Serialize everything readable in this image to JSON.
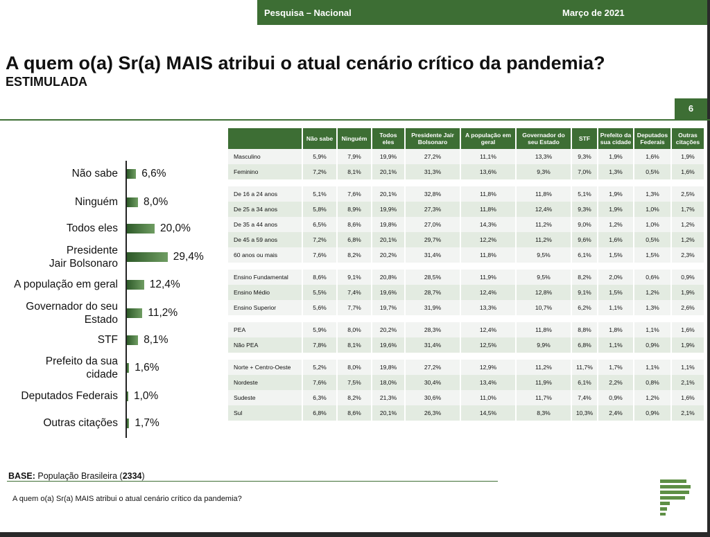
{
  "header": {
    "survey": "Pesquisa – Nacional",
    "date": "Março de 2021",
    "page": "6"
  },
  "title": "A quem o(a) Sr(a) MAIS atribui o atual cenário crítico da pandemia?",
  "subtitle": "ESTIMULADA",
  "chart_data": {
    "type": "bar",
    "orientation": "horizontal",
    "categories": [
      "Não sabe",
      "Ninguém",
      "Todos eles",
      "Presidente Jair Bolsonaro",
      "A população em geral",
      "Governador do seu Estado",
      "STF",
      "Prefeito da sua cidade",
      "Deputados Federais",
      "Outras citações"
    ],
    "values": [
      6.6,
      8.0,
      20.0,
      29.4,
      12.4,
      11.2,
      8.1,
      1.6,
      1.0,
      1.7
    ],
    "value_labels": [
      "6,6%",
      "8,0%",
      "20,0%",
      "29,4%",
      "12,4%",
      "11,2%",
      "8,1%",
      "1,6%",
      "1,0%",
      "1,7%"
    ],
    "category_lines": [
      [
        "Não sabe"
      ],
      [
        "Ninguém"
      ],
      [
        "Todos eles"
      ],
      [
        "Presidente",
        "Jair Bolsonaro"
      ],
      [
        "A população em geral"
      ],
      [
        "Governador do seu",
        "Estado"
      ],
      [
        "STF"
      ],
      [
        "Prefeito da sua",
        "cidade"
      ],
      [
        "Deputados Federais"
      ],
      [
        "Outras citações"
      ]
    ],
    "unit": "%"
  },
  "table": {
    "columns": [
      "",
      "Não sabe",
      "Ninguém",
      "Todos eles",
      "Presidente Jair Bolsonaro",
      "A população em geral",
      "Governador do seu Estado",
      "STF",
      "Prefeito da sua cidade",
      "Deputados Federais",
      "Outras citações"
    ],
    "groups": [
      [
        [
          "Masculino",
          "5,9%",
          "7,9%",
          "19,9%",
          "27,2%",
          "11,1%",
          "13,3%",
          "9,3%",
          "1,9%",
          "1,6%",
          "1,9%"
        ],
        [
          "Feminino",
          "7,2%",
          "8,1%",
          "20,1%",
          "31,3%",
          "13,6%",
          "9,3%",
          "7,0%",
          "1,3%",
          "0,5%",
          "1,6%"
        ]
      ],
      [
        [
          "De 16 a 24 anos",
          "5,1%",
          "7,6%",
          "20,1%",
          "32,8%",
          "11,8%",
          "11,8%",
          "5,1%",
          "1,9%",
          "1,3%",
          "2,5%"
        ],
        [
          "De 25 a 34 anos",
          "5,8%",
          "8,9%",
          "19,9%",
          "27,3%",
          "11,8%",
          "12,4%",
          "9,3%",
          "1,9%",
          "1,0%",
          "1,7%"
        ],
        [
          "De 35 a 44 anos",
          "6,5%",
          "8,6%",
          "19,8%",
          "27,0%",
          "14,3%",
          "11,2%",
          "9,0%",
          "1,2%",
          "1,0%",
          "1,2%"
        ],
        [
          "De 45 a 59 anos",
          "7,2%",
          "6,8%",
          "20,1%",
          "29,7%",
          "12,2%",
          "11,2%",
          "9,6%",
          "1,6%",
          "0,5%",
          "1,2%"
        ],
        [
          "60 anos ou mais",
          "7,6%",
          "8,2%",
          "20,2%",
          "31,4%",
          "11,8%",
          "9,5%",
          "6,1%",
          "1,5%",
          "1,5%",
          "2,3%"
        ]
      ],
      [
        [
          "Ensino Fundamental",
          "8,6%",
          "9,1%",
          "20,8%",
          "28,5%",
          "11,9%",
          "9,5%",
          "8,2%",
          "2,0%",
          "0,6%",
          "0,9%"
        ],
        [
          "Ensino Médio",
          "5,5%",
          "7,4%",
          "19,6%",
          "28,7%",
          "12,4%",
          "12,8%",
          "9,1%",
          "1,5%",
          "1,2%",
          "1,9%"
        ],
        [
          "Ensino Superior",
          "5,6%",
          "7,7%",
          "19,7%",
          "31,9%",
          "13,3%",
          "10,7%",
          "6,2%",
          "1,1%",
          "1,3%",
          "2,6%"
        ]
      ],
      [
        [
          "PEA",
          "5,9%",
          "8,0%",
          "20,2%",
          "28,3%",
          "12,4%",
          "11,8%",
          "8,8%",
          "1,8%",
          "1,1%",
          "1,6%"
        ],
        [
          "Não PEA",
          "7,8%",
          "8,1%",
          "19,6%",
          "31,4%",
          "12,5%",
          "9,9%",
          "6,8%",
          "1,1%",
          "0,9%",
          "1,9%"
        ]
      ],
      [
        [
          "Norte + Centro-Oeste",
          "5,2%",
          "8,0%",
          "19,8%",
          "27,2%",
          "12,9%",
          "11,2%",
          "11,7%",
          "1,7%",
          "1,1%",
          "1,1%"
        ],
        [
          "Nordeste",
          "7,6%",
          "7,5%",
          "18,0%",
          "30,4%",
          "13,4%",
          "11,9%",
          "6,1%",
          "2,2%",
          "0,8%",
          "2,1%"
        ],
        [
          "Sudeste",
          "6,3%",
          "8,2%",
          "21,3%",
          "30,6%",
          "11,0%",
          "11,7%",
          "7,4%",
          "0,9%",
          "1,2%",
          "1,6%"
        ],
        [
          "Sul",
          "6,8%",
          "8,6%",
          "20,1%",
          "26,3%",
          "14,5%",
          "8,3%",
          "10,3%",
          "2,4%",
          "0,9%",
          "2,1%"
        ]
      ]
    ]
  },
  "base": {
    "label": "BASE:",
    "text_before": "População Brasileira (",
    "count": "2334",
    "text_after": ")"
  },
  "footer_question": "A quem o(a) Sr(a) MAIS atribui o atual cenário crítico da pandemia?",
  "colors": {
    "brand": "#3d6e34",
    "row_light": "#f2f4f2",
    "row_alt": "#e3ebe1"
  }
}
